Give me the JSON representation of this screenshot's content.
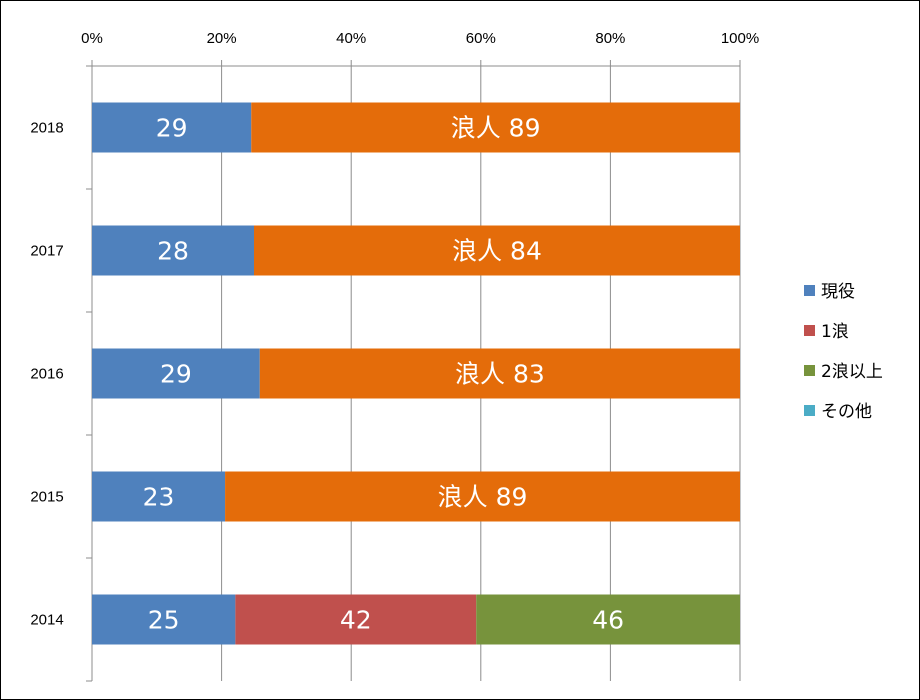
{
  "chart_data": {
    "type": "bar",
    "orientation": "horizontal",
    "stacked": "percent",
    "xlim": [
      0,
      100
    ],
    "x_ticks": [
      "0%",
      "20%",
      "40%",
      "60%",
      "80%",
      "100%"
    ],
    "categories": [
      "2018",
      "2017",
      "2016",
      "2015",
      "2014"
    ],
    "series": [
      {
        "name": "現役",
        "color": "#4f81bd",
        "values": [
          29,
          28,
          29,
          23,
          25
        ]
      },
      {
        "name": "1浪",
        "color": "#c0504d",
        "values": [
          0,
          0,
          0,
          0,
          42
        ]
      },
      {
        "name": "2浪以上",
        "color": "#77933c",
        "values": [
          0,
          0,
          0,
          0,
          46
        ]
      },
      {
        "name": "その他",
        "color": "#4bacc6",
        "values": [
          0,
          0,
          0,
          0,
          0
        ]
      }
    ],
    "extra_bars": {
      "color": "#e46c0a",
      "values": [
        89,
        84,
        83,
        89,
        null
      ]
    },
    "bar_labels": [
      [
        "29",
        "浪人 89"
      ],
      [
        "28",
        "浪人 84"
      ],
      [
        "29",
        "浪人 83"
      ],
      [
        "23",
        "浪人 89"
      ],
      [
        "25",
        "42",
        "46"
      ]
    ],
    "legend_position": "right",
    "grid": true
  }
}
